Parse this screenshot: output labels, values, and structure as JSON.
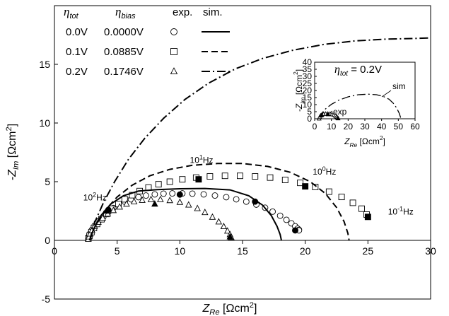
{
  "chart_data": [
    {
      "type": "scatter",
      "xlabel": {
        "sym": "Z",
        "sub": "Re",
        "unit": " [Ωcm",
        "sup": "2",
        "end": "]"
      },
      "ylabel": {
        "sym": "-Z",
        "sub": "Im",
        "unit": " [Ωcm",
        "sup": "2",
        "end": "]"
      },
      "xlim": [
        0,
        30
      ],
      "ylim": [
        -5,
        20
      ],
      "xticks": [
        "0",
        "5",
        "10",
        "15",
        "20",
        "25",
        "30"
      ],
      "yticks": [
        "-5",
        "0",
        "5",
        "10",
        "15"
      ],
      "legend": {
        "headers": [
          {
            "sym": "η",
            "sub": "tot"
          },
          {
            "sym": "η",
            "sub": "bias"
          },
          {
            "text": "exp."
          },
          {
            "text": "sim."
          }
        ],
        "rows": [
          {
            "tot": "0.0V",
            "bias": "0.0000V",
            "marker": "circle",
            "line": "solid"
          },
          {
            "tot": "0.1V",
            "bias": "0.0885V",
            "marker": "square",
            "line": "dashed"
          },
          {
            "tot": "0.2V",
            "bias": "0.1746V",
            "marker": "triangle",
            "line": "dashdot"
          }
        ]
      },
      "series": [
        {
          "name": "0.0V exp.",
          "marker": "circle",
          "x": [
            2.7,
            2.75,
            2.85,
            3.0,
            3.2,
            3.5,
            3.9,
            4.3,
            4.7,
            5.1,
            5.6,
            6.1,
            6.7,
            7.3,
            8.0,
            8.7,
            9.4,
            10.2,
            11.0,
            11.9,
            12.8,
            13.7,
            14.5,
            15.3,
            16.1,
            16.8,
            17.4,
            18.0,
            18.5,
            18.9,
            19.2,
            19.4,
            19.5,
            19.5
          ],
          "y": [
            0.15,
            0.35,
            0.6,
            0.9,
            1.25,
            1.6,
            2.0,
            2.4,
            2.75,
            3.05,
            3.3,
            3.5,
            3.68,
            3.82,
            3.92,
            3.98,
            4.0,
            4.0,
            3.98,
            3.92,
            3.82,
            3.68,
            3.5,
            3.3,
            3.05,
            2.78,
            2.45,
            2.1,
            1.75,
            1.45,
            1.2,
            1.0,
            0.9,
            0.85
          ]
        },
        {
          "name": "0.1V exp.",
          "marker": "square",
          "x": [
            2.7,
            2.8,
            2.95,
            3.15,
            3.4,
            3.75,
            4.15,
            4.6,
            5.1,
            5.6,
            6.2,
            6.8,
            7.5,
            8.3,
            9.2,
            10.2,
            11.3,
            12.4,
            13.6,
            14.8,
            16.0,
            17.2,
            18.4,
            19.6,
            20.8,
            21.9,
            22.9,
            23.8,
            24.5,
            24.9
          ],
          "y": [
            0.15,
            0.4,
            0.7,
            1.05,
            1.4,
            1.8,
            2.25,
            2.7,
            3.1,
            3.5,
            3.85,
            4.2,
            4.5,
            4.78,
            5.0,
            5.2,
            5.35,
            5.45,
            5.5,
            5.5,
            5.45,
            5.35,
            5.15,
            4.9,
            4.55,
            4.15,
            3.7,
            3.2,
            2.7,
            2.2
          ]
        },
        {
          "name": "0.2V exp.",
          "marker": "triangle",
          "x": [
            2.7,
            2.75,
            2.85,
            3.0,
            3.2,
            3.5,
            3.85,
            4.25,
            4.7,
            5.2,
            5.75,
            6.35,
            7.0,
            7.7,
            8.45,
            9.2,
            10.0,
            10.7,
            11.4,
            12.0,
            12.6,
            13.1,
            13.5,
            13.8,
            14.0,
            14.1
          ],
          "y": [
            0.1,
            0.3,
            0.55,
            0.85,
            1.2,
            1.55,
            1.9,
            2.25,
            2.55,
            2.85,
            3.1,
            3.3,
            3.42,
            3.48,
            3.48,
            3.4,
            3.25,
            3.02,
            2.72,
            2.38,
            1.98,
            1.58,
            1.18,
            0.8,
            0.5,
            0.25
          ]
        },
        {
          "name": "0.0V sim.",
          "line": "solid",
          "x": [
            2.8,
            3.1,
            3.7,
            4.5,
            5.5,
            6.7,
            8.2,
            10.0,
            12.0,
            14.0,
            15.5,
            16.6,
            17.3,
            17.75,
            18.0,
            18.1
          ],
          "y": [
            0.0,
            0.9,
            2.1,
            3.1,
            3.8,
            4.2,
            4.32,
            4.4,
            4.42,
            4.3,
            3.8,
            3.0,
            2.1,
            1.2,
            0.5,
            0.0
          ]
        },
        {
          "name": "0.1V sim.",
          "line": "dashed",
          "x": [
            2.8,
            3.2,
            4.0,
            5.0,
            6.2,
            7.6,
            9.2,
            11.0,
            13.0,
            15.0,
            17.0,
            18.8,
            20.4,
            21.6,
            22.5,
            23.1,
            23.4,
            23.5
          ],
          "y": [
            0.0,
            1.1,
            2.5,
            3.7,
            4.7,
            5.5,
            6.05,
            6.4,
            6.55,
            6.55,
            6.3,
            5.8,
            5.0,
            4.0,
            2.8,
            1.6,
            0.6,
            0.0
          ]
        },
        {
          "name": "0.2V sim.",
          "line": "dashdot",
          "x": [
            2.8,
            3.2,
            3.9,
            4.8,
            5.9,
            7.2,
            8.7,
            10.4,
            12.3,
            14.4,
            16.6,
            19.0,
            21.5,
            24.0,
            26.5,
            28.5,
            30.0
          ],
          "y": [
            0.0,
            1.5,
            3.2,
            5.0,
            6.9,
            8.7,
            10.4,
            12.0,
            13.4,
            14.6,
            15.5,
            16.2,
            16.7,
            17.0,
            17.15,
            17.2,
            17.25
          ]
        },
        {
          "name": "frequency markers",
          "marker": "filled-square",
          "x": [
            11.5,
            20.0,
            25.0
          ],
          "y": [
            5.2,
            4.6,
            2.0
          ]
        },
        {
          "name": "frequency markers",
          "marker": "filled-circle",
          "x": [
            4.3,
            10.0,
            16.0,
            19.2
          ],
          "y": [
            2.6,
            3.9,
            3.3,
            0.85
          ]
        },
        {
          "name": "frequency markers",
          "marker": "filled-triangle",
          "x": [
            4.2,
            8.0,
            14.0
          ],
          "y": [
            2.5,
            3.1,
            0.3
          ]
        }
      ],
      "annotations": [
        {
          "base": "10",
          "exp": "1",
          "unit": "Hz",
          "x": 10.8,
          "y": 6.6
        },
        {
          "base": "10",
          "exp": "0",
          "unit": "Hz",
          "x": 20.6,
          "y": 5.6
        },
        {
          "base": "10",
          "exp": "2",
          "unit": "Hz",
          "x": 2.3,
          "y": 3.4
        },
        {
          "base": "10",
          "exp": "-1",
          "unit": "Hz",
          "x": 26.6,
          "y": 2.2
        }
      ]
    },
    {
      "type": "scatter",
      "xlabel": {
        "sym": "Z",
        "sub": "Re",
        "unit": " [Ωcm",
        "sup": "2",
        "end": "]"
      },
      "ylabel": {
        "sym": "-Z",
        "sub": "Im",
        "unit": " [Ωcm",
        "sup": "2",
        "end": "]"
      },
      "xlim": [
        0,
        60
      ],
      "ylim": [
        0,
        40
      ],
      "xticks": [
        "0",
        "10",
        "20",
        "30",
        "40",
        "50",
        "60"
      ],
      "yticks": [
        "0",
        "5",
        "10",
        "15",
        "20",
        "25",
        "30",
        "35",
        "40"
      ],
      "title": {
        "sym": "η",
        "sub": "tot",
        "rest": " = 0.2V"
      },
      "series": [
        {
          "name": "sim",
          "line": "dashdot",
          "x": [
            2.8,
            4.0,
            6.5,
            10.0,
            14.5,
            20.0,
            26.0,
            32.0,
            37.0,
            41.0,
            44.5,
            47.0,
            49.0,
            50.5,
            51.2,
            51.5
          ],
          "y": [
            0.0,
            3.5,
            7.0,
            10.2,
            13.2,
            15.5,
            17.0,
            17.4,
            17.0,
            15.8,
            13.8,
            11.0,
            7.6,
            4.0,
            1.5,
            0.0
          ]
        },
        {
          "name": "exp",
          "marker": "triangle",
          "x": [
            2.7,
            3.0,
            3.6,
            4.4,
            5.4,
            6.6,
            7.9,
            9.2,
            10.4,
            11.5,
            12.4,
            13.1,
            13.6,
            14.0
          ],
          "y": [
            0.1,
            1.2,
            2.2,
            2.9,
            3.3,
            3.5,
            3.5,
            3.4,
            3.1,
            2.7,
            2.1,
            1.4,
            0.7,
            0.2
          ]
        },
        {
          "name": "exp",
          "marker": "filled-triangle",
          "x": [
            4.2,
            8.0,
            14.0
          ],
          "y": [
            2.5,
            3.1,
            0.3
          ]
        }
      ],
      "labels": {
        "sim": "sim",
        "exp": "exp"
      }
    }
  ]
}
